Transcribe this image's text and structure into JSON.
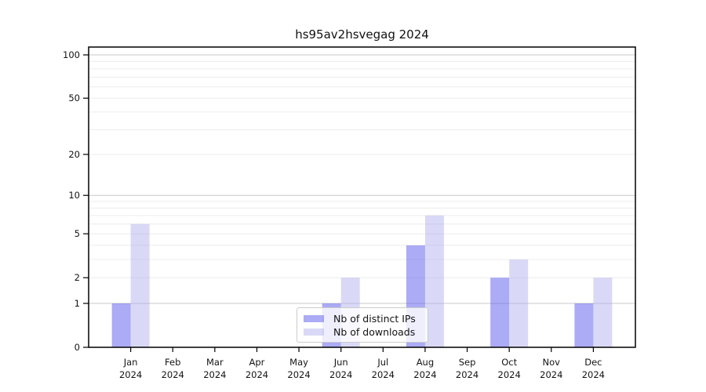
{
  "title": "hs95av2hsvegag 2024",
  "chart_data": {
    "type": "bar",
    "title": "hs95av2hsvegag 2024",
    "categories": [
      "Jan",
      "Feb",
      "Mar",
      "Apr",
      "May",
      "Jun",
      "Jul",
      "Aug",
      "Sep",
      "Oct",
      "Nov",
      "Dec"
    ],
    "x_tick_year": "2024",
    "series": [
      {
        "name": "Nb of distinct IPs",
        "color": "#6666ee",
        "opacity": 0.55,
        "values": [
          1,
          0,
          0,
          0,
          0,
          1,
          0,
          4,
          0,
          2,
          0,
          1
        ]
      },
      {
        "name": "Nb of downloads",
        "color": "#aaaaee",
        "opacity": 0.45,
        "values": [
          6,
          0,
          0,
          0,
          0,
          2,
          0,
          7,
          0,
          3,
          0,
          2
        ]
      }
    ],
    "y_axis": {
      "scale": "log1p",
      "ticks": [
        0,
        1,
        2,
        5,
        10,
        20,
        50,
        100
      ],
      "major_grid": [
        1,
        10,
        100
      ],
      "minor_grid": [
        2,
        3,
        4,
        5,
        6,
        7,
        8,
        9,
        20,
        30,
        40,
        50,
        60,
        70,
        80,
        90
      ],
      "max": 113
    },
    "grid": "both",
    "legend_position": "lower center"
  },
  "colors": {
    "major_grid": "#c9c9c9",
    "minor_grid": "#ececec",
    "axis": "#000000",
    "text": "#141414"
  }
}
